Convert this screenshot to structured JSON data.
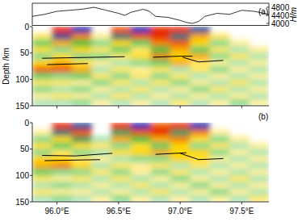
{
  "chart_data": [
    {
      "type": "line",
      "ylabel": "H/m",
      "annotations": [
        "(a)"
      ],
      "x": [
        95.8,
        95.9,
        96.0,
        96.1,
        96.2,
        96.3,
        96.4,
        96.5,
        96.55,
        96.6,
        96.7,
        96.75,
        96.8,
        96.9,
        97.0,
        97.05,
        97.1,
        97.15,
        97.2,
        97.3,
        97.4,
        97.5,
        97.6,
        97.72
      ],
      "values": [
        4350,
        4450,
        4600,
        4650,
        4700,
        4800,
        4650,
        4500,
        4400,
        4550,
        4700,
        4600,
        4350,
        4300,
        4150,
        4050,
        4000,
        4100,
        4350,
        4500,
        4450,
        4650,
        4600,
        4450
      ],
      "xlim": [
        95.8,
        97.72
      ],
      "ylim": [
        3900,
        5000
      ],
      "yticks": [
        4000,
        4400,
        4800
      ],
      "tick_labels": "y"
    },
    {
      "type": "heatmap",
      "ylabel": "Depth /km",
      "xlim": [
        95.8,
        97.72
      ],
      "ylim": [
        0,
        150
      ],
      "yticks": [
        0,
        50,
        100,
        150
      ],
      "xticks": [
        96,
        96.5,
        97,
        97.5
      ],
      "tick_labels": "y",
      "x_edges": [
        95.8,
        95.96,
        96.12,
        96.28,
        96.44,
        96.6,
        96.76,
        96.92,
        97.08,
        97.24,
        97.4,
        97.56,
        97.72
      ],
      "depth_edges": [
        0,
        12.5,
        25,
        37.5,
        50,
        62.5,
        75,
        87.5,
        100,
        112.5,
        125,
        137.5,
        150
      ],
      "amplitude_range": [
        -1,
        1
      ],
      "amplitude": [
        [
          null,
          0.9,
          -0.9,
          null,
          0.8,
          -0.9,
          0.9,
          0.9,
          -0.8,
          null,
          null,
          null
        ],
        [
          0.3,
          -0.8,
          0.7,
          0.2,
          -0.7,
          0.8,
          0.9,
          -0.7,
          0.6,
          0.3,
          null,
          null
        ],
        [
          -0.4,
          0.6,
          -0.5,
          -0.3,
          0.5,
          -0.4,
          0.7,
          0.8,
          0.5,
          -0.3,
          0.2,
          null
        ],
        [
          0.4,
          -0.3,
          0.5,
          0.3,
          -0.4,
          0.3,
          -0.5,
          0.6,
          -0.4,
          0.3,
          -0.2,
          0.2
        ],
        [
          -0.3,
          0.4,
          -0.3,
          -0.3,
          0.3,
          0.4,
          0.7,
          0.5,
          0.6,
          -0.3,
          0.3,
          -0.2
        ],
        [
          0.5,
          0.6,
          0.4,
          0.2,
          -0.2,
          -0.3,
          -0.4,
          0.6,
          0.3,
          0.2,
          -0.2,
          0.2
        ],
        [
          0.8,
          0.8,
          0.6,
          -0.2,
          0.3,
          0.2,
          0.3,
          -0.2,
          0.3,
          -0.3,
          0.2,
          -0.2
        ],
        [
          -0.4,
          -0.3,
          -0.4,
          0.3,
          -0.3,
          0.3,
          -0.3,
          0.3,
          -0.2,
          0.2,
          -0.2,
          0.2
        ],
        [
          0.3,
          0.3,
          0.2,
          -0.3,
          0.3,
          -0.2,
          0.3,
          -0.3,
          0.2,
          -0.2,
          0.3,
          -0.2
        ],
        [
          -0.3,
          -0.2,
          -0.3,
          0.2,
          -0.2,
          0.3,
          -0.2,
          0.2,
          -0.3,
          0.3,
          -0.2,
          0.2
        ],
        [
          0.2,
          0.3,
          0.2,
          -0.2,
          0.3,
          -0.2,
          0.2,
          -0.2,
          0.2,
          -0.2,
          0.2,
          -0.2
        ],
        [
          -0.2,
          -0.2,
          -0.3,
          0.2,
          -0.2,
          0.2,
          -0.2,
          0.3,
          -0.2,
          0.2,
          -0.3,
          0.2
        ]
      ],
      "lines": [
        {
          "x": [
            95.88,
            96.55
          ],
          "depth": [
            60,
            57
          ]
        },
        {
          "x": [
            95.92,
            96.25
          ],
          "depth": [
            72,
            70
          ]
        },
        {
          "x": [
            96.78,
            97.0,
            97.1
          ],
          "depth": [
            58,
            56,
            56
          ]
        },
        {
          "x": [
            97.02,
            97.15,
            97.35
          ],
          "depth": [
            58,
            67,
            64
          ]
        }
      ]
    },
    {
      "type": "heatmap",
      "annotations": [
        "(b)"
      ],
      "xlim": [
        95.8,
        97.72
      ],
      "ylim": [
        0,
        150
      ],
      "yticks": [
        0,
        50,
        100,
        150
      ],
      "xticks": [
        {
          "value": 96,
          "label": "96.0°E"
        },
        {
          "value": 96.5,
          "label": "96.5°E"
        },
        {
          "value": 97,
          "label": "97.0°E"
        },
        {
          "value": 97.5,
          "label": "97.5°E"
        }
      ],
      "x_edges": [
        95.8,
        95.96,
        96.12,
        96.28,
        96.44,
        96.6,
        96.76,
        96.92,
        97.08,
        97.24,
        97.4,
        97.56,
        97.72
      ],
      "depth_edges": [
        0,
        12.5,
        25,
        37.5,
        50,
        62.5,
        75,
        87.5,
        100,
        112.5,
        125,
        137.5,
        150
      ],
      "amplitude_range": [
        -1,
        1
      ],
      "amplitude": [
        [
          null,
          0.9,
          -0.8,
          null,
          0.9,
          -0.9,
          0.8,
          0.9,
          -0.9,
          null,
          null,
          null
        ],
        [
          0.2,
          -0.7,
          0.8,
          null,
          -0.6,
          0.8,
          0.9,
          -0.6,
          0.7,
          0.2,
          null,
          null
        ],
        [
          -0.3,
          0.5,
          -0.6,
          -0.2,
          0.6,
          -0.5,
          0.6,
          0.7,
          0.4,
          -0.3,
          0.2,
          null
        ],
        [
          0.4,
          -0.4,
          0.4,
          0.3,
          -0.3,
          0.4,
          -0.4,
          0.5,
          -0.3,
          0.3,
          -0.2,
          0.2
        ],
        [
          -0.3,
          0.3,
          -0.3,
          -0.2,
          0.4,
          0.5,
          0.6,
          0.5,
          0.5,
          -0.3,
          0.2,
          -0.2
        ],
        [
          0.5,
          0.5,
          0.3,
          0.2,
          -0.2,
          -0.3,
          -0.3,
          0.5,
          0.4,
          0.2,
          -0.2,
          0.2
        ],
        [
          0.6,
          0.7,
          0.5,
          -0.2,
          0.3,
          0.2,
          0.3,
          -0.2,
          0.3,
          -0.2,
          0.2,
          -0.2
        ],
        [
          -0.4,
          -0.3,
          -0.3,
          0.3,
          -0.3,
          0.2,
          -0.3,
          0.3,
          -0.2,
          0.2,
          -0.2,
          0.2
        ],
        [
          0.3,
          0.2,
          0.3,
          -0.2,
          0.3,
          -0.2,
          0.2,
          -0.3,
          0.2,
          -0.2,
          0.3,
          -0.2
        ],
        [
          -0.2,
          -0.3,
          -0.2,
          0.2,
          -0.2,
          0.3,
          -0.2,
          0.2,
          -0.3,
          0.2,
          -0.2,
          0.2
        ],
        [
          0.3,
          0.2,
          0.2,
          -0.2,
          0.2,
          -0.2,
          0.3,
          -0.2,
          0.2,
          -0.3,
          0.2,
          -0.2
        ],
        [
          -0.2,
          -0.3,
          -0.2,
          0.2,
          -0.3,
          0.2,
          -0.2,
          0.2,
          -0.2,
          0.2,
          -0.2,
          0.3
        ]
      ],
      "lines": [
        {
          "x": [
            95.88,
            96.15,
            96.45
          ],
          "depth": [
            62,
            63,
            58
          ]
        },
        {
          "x": [
            95.9,
            96.35
          ],
          "depth": [
            72,
            70
          ]
        },
        {
          "x": [
            96.8,
            97.05
          ],
          "depth": [
            60,
            57
          ]
        },
        {
          "x": [
            97.0,
            97.15,
            97.35
          ],
          "depth": [
            58,
            70,
            68
          ]
        }
      ]
    }
  ]
}
